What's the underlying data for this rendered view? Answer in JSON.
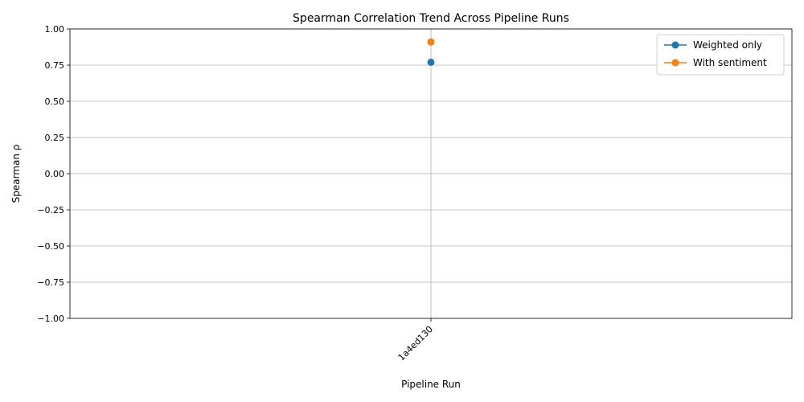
{
  "chart_data": {
    "type": "line",
    "title": "Spearman Correlation Trend Across Pipeline Runs",
    "xlabel": "Pipeline Run",
    "ylabel": "Spearman ρ",
    "categories": [
      "1a4ed130"
    ],
    "ylim": [
      -1.0,
      1.0
    ],
    "yticks": [
      -1.0,
      -0.75,
      -0.5,
      -0.25,
      0.0,
      0.25,
      0.5,
      0.75,
      1.0
    ],
    "ytick_labels": [
      "−1.00",
      "−0.75",
      "−0.50",
      "−0.25",
      "0.00",
      "0.25",
      "0.50",
      "0.75",
      "1.00"
    ],
    "grid": true,
    "legend_position": "top-right",
    "series": [
      {
        "name": "Weighted only",
        "values": [
          0.77
        ],
        "color": "#1f77b4",
        "marker": "circle"
      },
      {
        "name": "With sentiment",
        "values": [
          0.91
        ],
        "color": "#ff7f0e",
        "marker": "circle"
      }
    ]
  }
}
